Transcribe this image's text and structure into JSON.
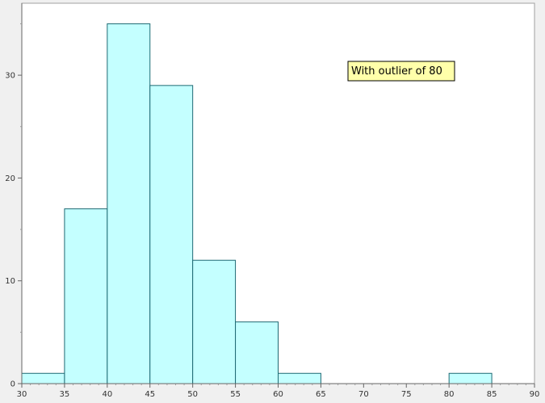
{
  "chart_data": {
    "type": "bar",
    "title": "",
    "xlabel": "",
    "ylabel": "",
    "bins": [
      {
        "start": 30,
        "end": 35,
        "count": 1
      },
      {
        "start": 35,
        "end": 40,
        "count": 17
      },
      {
        "start": 40,
        "end": 45,
        "count": 35
      },
      {
        "start": 45,
        "end": 50,
        "count": 29
      },
      {
        "start": 50,
        "end": 55,
        "count": 12
      },
      {
        "start": 55,
        "end": 60,
        "count": 6
      },
      {
        "start": 60,
        "end": 65,
        "count": 1
      },
      {
        "start": 65,
        "end": 70,
        "count": 0
      },
      {
        "start": 70,
        "end": 75,
        "count": 0
      },
      {
        "start": 75,
        "end": 80,
        "count": 0
      },
      {
        "start": 80,
        "end": 85,
        "count": 1
      },
      {
        "start": 85,
        "end": 90,
        "count": 0
      }
    ],
    "xlim": [
      30,
      90
    ],
    "ylim": [
      0,
      37
    ],
    "xticks": [
      30,
      35,
      40,
      45,
      50,
      55,
      60,
      65,
      70,
      75,
      80,
      85,
      90
    ],
    "yticks": [
      0,
      10,
      20,
      30
    ],
    "grid": false,
    "annotation": "With outlier of 80",
    "colors": {
      "bar_fill": "#c4ffff",
      "bar_edge": "#1f6a74",
      "annotation_fill": "#ffffaa"
    }
  }
}
